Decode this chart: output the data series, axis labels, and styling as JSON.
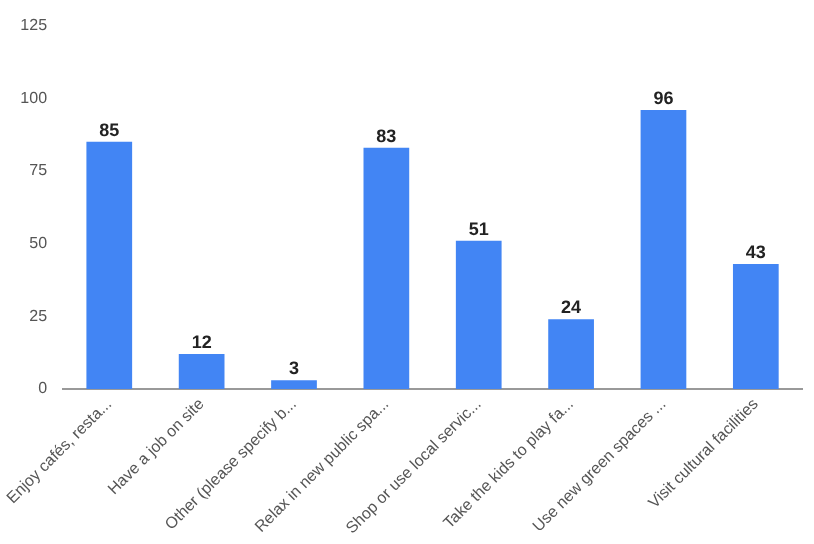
{
  "chart_data": {
    "type": "bar",
    "categories": [
      "Enjoy cafés, resta...",
      "Have a job on site",
      "Other (please specify b...",
      "Relax in new public spa...",
      "Shop or use local servic...",
      "Take the kids to play fa...",
      "Use new green spaces ...",
      "Visit cultural facilities"
    ],
    "values": [
      85,
      12,
      3,
      83,
      51,
      24,
      96,
      43
    ],
    "color": "#4285f4",
    "ylim": [
      0,
      125
    ],
    "yticks": [
      0,
      25,
      50,
      75,
      100,
      125
    ],
    "grid": false,
    "data_labels": true,
    "legend": false
  }
}
